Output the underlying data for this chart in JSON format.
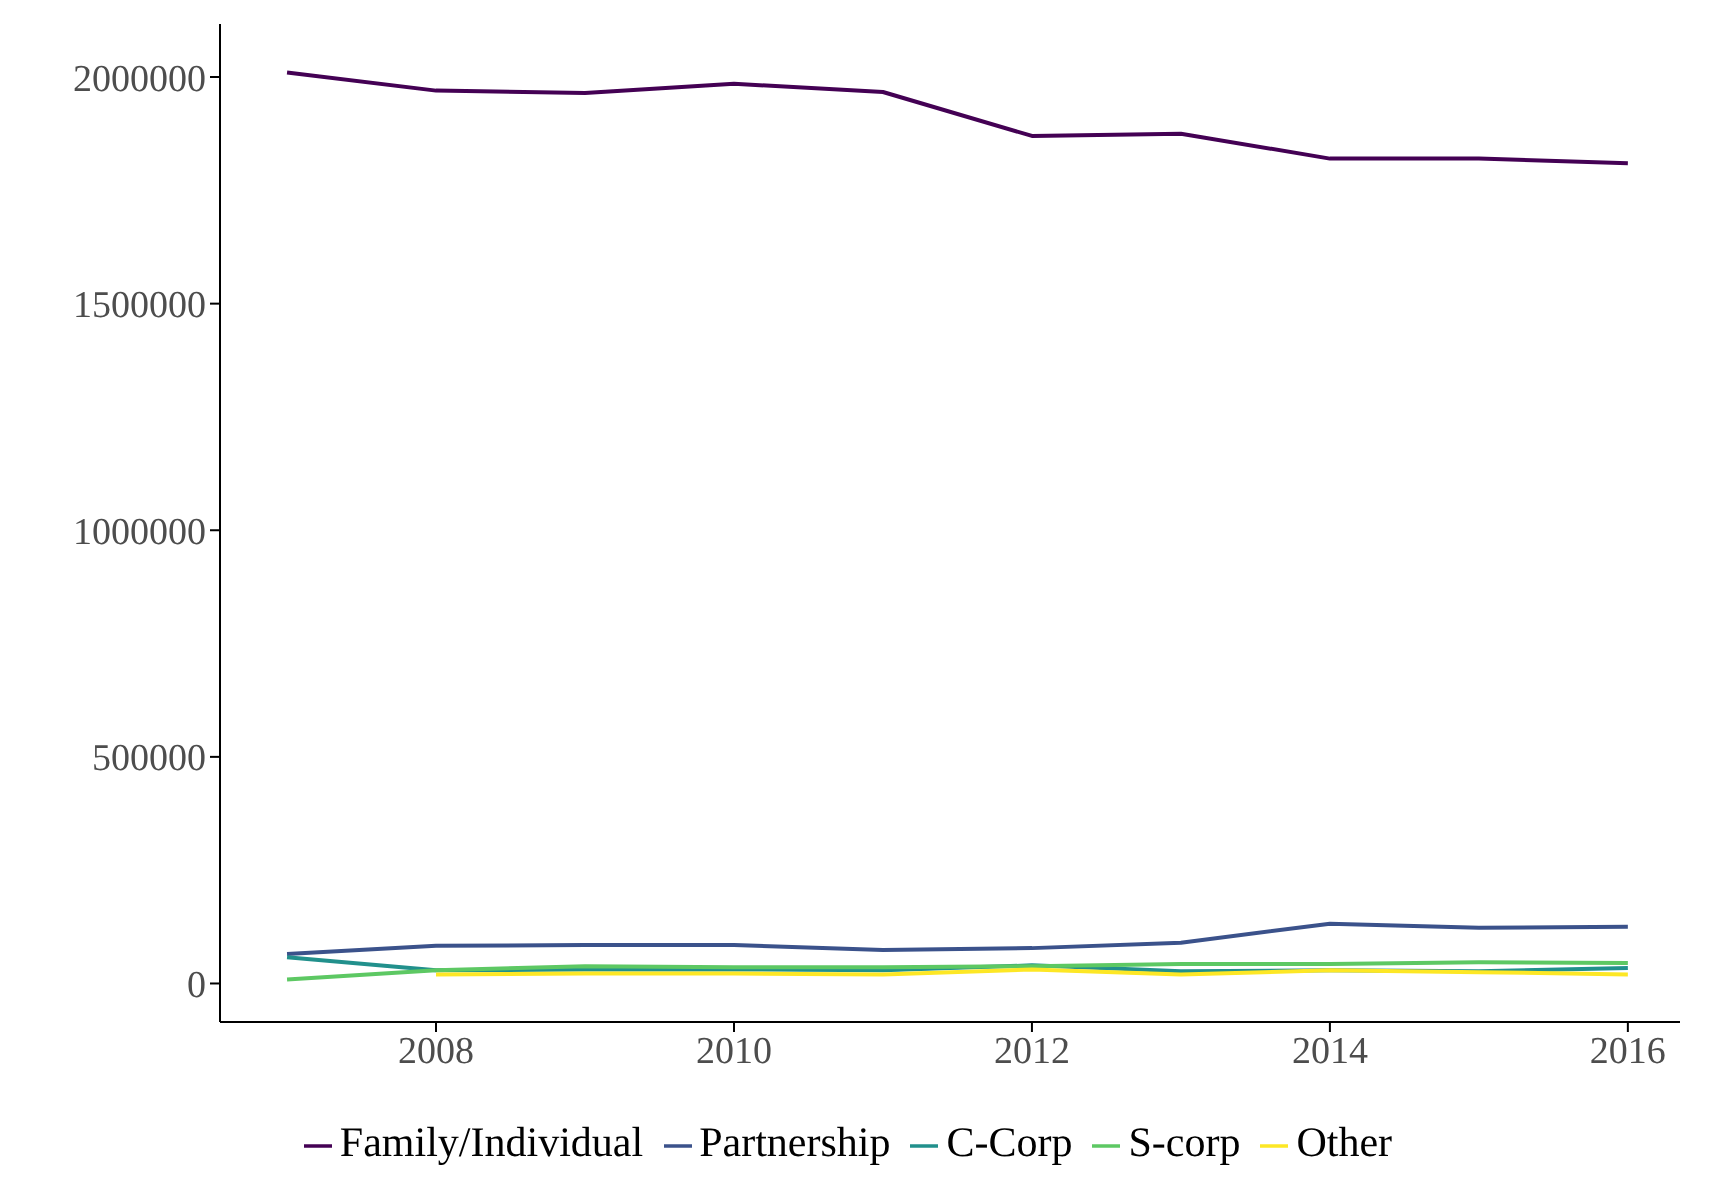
{
  "chart_data": {
    "type": "line",
    "x": [
      2007,
      2008,
      2009,
      2010,
      2011,
      2012,
      2013,
      2014,
      2015,
      2016
    ],
    "series": [
      {
        "name": "Family/Individual",
        "color": "#440154",
        "values": [
          2010000,
          1970000,
          1965000,
          1985000,
          1967000,
          1870000,
          1875000,
          1820000,
          1820000,
          1810000
        ]
      },
      {
        "name": "Partnership",
        "color": "#3b528b",
        "values": [
          65000,
          83000,
          85000,
          85000,
          74000,
          78000,
          90000,
          132000,
          123000,
          125000
        ]
      },
      {
        "name": "C-Corp",
        "color": "#21908c",
        "values": [
          58000,
          29000,
          31000,
          31000,
          29000,
          40000,
          27000,
          29000,
          27000,
          34000
        ]
      },
      {
        "name": "S-corp",
        "color": "#5dc863",
        "values": [
          9000,
          29000,
          38000,
          36000,
          36000,
          38000,
          43000,
          43000,
          47000,
          45000
        ]
      },
      {
        "name": "Other",
        "color": "#fde725",
        "values": [
          null,
          20000,
          22000,
          22000,
          20000,
          31000,
          20000,
          29000,
          25000,
          20000
        ]
      }
    ],
    "xlim": [
      2006.55,
      2016.35
    ],
    "xticks": [
      2008,
      2010,
      2012,
      2014,
      2016
    ],
    "ylim": [
      -85000,
      2117000
    ],
    "yticks": [
      0,
      500000,
      1000000,
      1500000,
      2000000
    ],
    "grid": false,
    "legend": "bottom",
    "marker": "none",
    "line_style": "solid"
  }
}
